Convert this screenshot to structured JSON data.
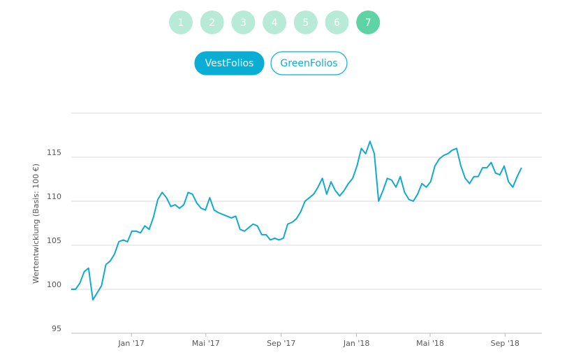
{
  "pagination": [
    "1",
    "2",
    "3",
    "4",
    "5",
    "6",
    "7"
  ],
  "active_page": 6,
  "tabs": [
    "VestFolios",
    "GreenFolios"
  ],
  "active_tab": 0,
  "chart_data": {
    "type": "line",
    "y_label": "Wertentwicklung (Basis: 100 €)",
    "x": [
      0,
      1,
      2,
      3,
      4,
      5,
      6,
      7,
      8,
      9,
      10,
      11,
      12,
      13,
      14,
      15,
      16,
      17,
      18,
      19,
      20,
      21,
      22,
      23,
      24,
      25,
      26,
      27,
      28,
      29,
      30,
      31,
      32,
      33,
      34,
      35,
      36,
      37,
      38,
      39,
      40,
      41,
      42,
      43,
      44,
      45,
      46,
      47,
      48,
      49,
      50,
      51,
      52,
      53,
      54,
      55,
      56,
      57,
      58,
      59,
      60,
      61,
      62,
      63,
      64,
      65,
      66,
      67,
      68,
      69,
      70,
      71,
      72,
      73,
      74,
      75,
      76,
      77,
      78,
      79,
      80,
      81,
      82,
      83,
      84,
      85,
      86,
      87,
      88,
      89,
      90,
      91,
      92,
      93,
      94,
      95,
      96,
      97,
      98,
      99,
      100,
      101,
      102,
      103,
      104
    ],
    "series": [
      {
        "color": "#13a9cf",
        "values": [
          100,
          100,
          100.7,
          102,
          102.4,
          98.8,
          99.6,
          100.4,
          102.8,
          103.2,
          104,
          105.4,
          105.6,
          105.4,
          106.6,
          106.6,
          106.4,
          107.2,
          106.8,
          108.2,
          110.2,
          111,
          110.4,
          109.4,
          109.6,
          109.2,
          109.6,
          111,
          110.8,
          109.8,
          109.2,
          109,
          110.4,
          109,
          108.7,
          108.5,
          108.3,
          108.1,
          108.3,
          106.8,
          106.6,
          107,
          107.4,
          107.2,
          106.2,
          106.2,
          105.6,
          105.8,
          105.6,
          105.8,
          107.4,
          107.6,
          108,
          108.8,
          110,
          110.4,
          110.8,
          111.6,
          112.6,
          110.8,
          112.2,
          111.2,
          110.6,
          111.2,
          112,
          112.6,
          114,
          116,
          115.4,
          116.8,
          115.4,
          110,
          111.2,
          112.6,
          112.4,
          111.6,
          112.8,
          111,
          110.2,
          110,
          110.8,
          112,
          111.6,
          112.2,
          114,
          114.8,
          115.2,
          115.4,
          115.8,
          116,
          114,
          112.6,
          112,
          112.8,
          112.8,
          113.8,
          113.8,
          114.4,
          113.2,
          113,
          114,
          112.2,
          111.6,
          112.8,
          113.8
        ]
      }
    ],
    "xlim": [
      0,
      108.7
    ],
    "xticks": [
      {
        "value": 13.9,
        "label": "Jan '17"
      },
      {
        "value": 31.1,
        "label": "Mai '17"
      },
      {
        "value": 48.5,
        "label": "Sep '17"
      },
      {
        "value": 65.9,
        "label": "Jan '18"
      },
      {
        "value": 82.9,
        "label": "Mai '18"
      },
      {
        "value": 100.2,
        "label": "Sep '18"
      }
    ],
    "ylim": [
      95,
      120
    ],
    "yticks": [
      95,
      100,
      105,
      110,
      115
    ],
    "grid": true
  }
}
